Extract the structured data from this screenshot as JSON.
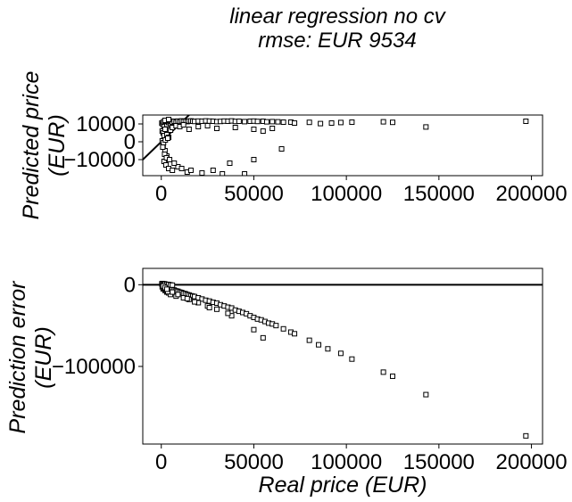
{
  "figure": {
    "title_line1": "linear regression no cv",
    "title_line2": "rmse: EUR 9534"
  },
  "chart_data": [
    {
      "type": "scatter",
      "title": "",
      "xlabel": "",
      "ylabel_line1": "Predicted price",
      "ylabel_line2": "(EUR)",
      "xlim": [
        -10000,
        206000
      ],
      "ylim": [
        -19000,
        15000
      ],
      "xticks": [
        0,
        50000,
        100000,
        150000,
        200000
      ],
      "xtick_labels": [
        "0",
        "50000",
        "100000",
        "150000",
        "200000"
      ],
      "yticks": [
        10000,
        0,
        -10000
      ],
      "ytick_labels": [
        "10000",
        "0",
        "−10000"
      ],
      "reference_line": {
        "label": "",
        "slope": 1,
        "intercept": 0
      },
      "marker": "square",
      "x": [
        300,
        800,
        1200,
        1500,
        2000,
        2500,
        3000,
        3500,
        4000,
        4500,
        5000,
        5500,
        6000,
        7000,
        8000,
        9000,
        10000,
        11000,
        12000,
        13000,
        14000,
        15000,
        16000,
        17000,
        18000,
        20000,
        22000,
        24000,
        26000,
        28000,
        30000,
        32000,
        34000,
        36000,
        38000,
        40000,
        42000,
        45000,
        48000,
        50000,
        52000,
        55000,
        57000,
        60000,
        63000,
        66000,
        70000,
        72000,
        80000,
        86000,
        92000,
        97000,
        103000,
        120000,
        125000,
        143000,
        197000,
        500,
        1000,
        1500,
        2000,
        3000,
        4000,
        5000,
        6000,
        8000,
        10000,
        12000,
        15000,
        20000,
        25000,
        30000,
        40000,
        50000,
        55000,
        60000,
        1000,
        2000,
        3000,
        1500,
        2500,
        4000,
        6000,
        9000,
        14000,
        28000,
        37000,
        500,
        1200,
        2200,
        3500,
        800,
        1800,
        2800,
        4500,
        7000,
        11000,
        16000,
        22000,
        33000,
        45000,
        65000,
        50000,
        2000,
        4000
      ],
      "y": [
        10500,
        9800,
        11200,
        8600,
        10900,
        11500,
        9700,
        11300,
        10800,
        11600,
        10200,
        11400,
        11000,
        11500,
        10900,
        11600,
        11200,
        11700,
        11400,
        11500,
        11300,
        11600,
        11700,
        11500,
        11400,
        11600,
        11500,
        11700,
        11600,
        11500,
        11300,
        11400,
        11600,
        11500,
        11700,
        11400,
        11500,
        11300,
        11500,
        11600,
        11400,
        11500,
        11200,
        11300,
        11200,
        11000,
        11000,
        10500,
        10900,
        10200,
        10500,
        10800,
        11000,
        11200,
        10900,
        8300,
        11500,
        6000,
        5000,
        3500,
        7000,
        4000,
        2500,
        6500,
        8000,
        9000,
        8500,
        9500,
        7000,
        8500,
        9000,
        7500,
        8000,
        7000,
        6000,
        7500,
        -2000,
        -5000,
        -8000,
        -11000,
        -13000,
        -15000,
        -16000,
        -14000,
        -17000,
        -16000,
        -12000,
        500,
        -500,
        1000,
        2000,
        -3000,
        -7000,
        -9000,
        -10000,
        -12000,
        -15000,
        -16000,
        -17500,
        -18000,
        -18000,
        -4000,
        -10000,
        12000,
        12500
      ]
    },
    {
      "type": "scatter",
      "title": "",
      "xlabel": "Real price (EUR)",
      "ylabel_line1": "Prediction error",
      "ylabel_line2": "(EUR)",
      "xlim": [
        -10000,
        206000
      ],
      "ylim": [
        -195000,
        20000
      ],
      "xticks": [
        0,
        50000,
        100000,
        150000,
        200000
      ],
      "xtick_labels": [
        "0",
        "50000",
        "100000",
        "150000",
        "200000"
      ],
      "yticks": [
        0,
        -100000
      ],
      "ytick_labels": [
        "0",
        "−100000"
      ],
      "reference_line": {
        "label": "",
        "slope": 0,
        "intercept": 0
      },
      "marker": "square",
      "x": [
        300,
        800,
        1200,
        1500,
        2000,
        2500,
        3000,
        3500,
        4000,
        4500,
        5000,
        6000,
        7000,
        8000,
        9000,
        10000,
        11000,
        12000,
        13000,
        14000,
        15000,
        16000,
        17000,
        18000,
        20000,
        22000,
        24000,
        26000,
        28000,
        30000,
        32000,
        34000,
        36000,
        38000,
        40000,
        42000,
        44000,
        46000,
        48000,
        50000,
        52000,
        54000,
        56000,
        58000,
        60000,
        62000,
        66000,
        70000,
        72000,
        80000,
        85000,
        90000,
        97000,
        103000,
        120000,
        125000,
        143000,
        197000,
        500,
        1000,
        1500,
        2000,
        3000,
        4000,
        5000,
        6000,
        1000,
        2000,
        3000,
        4000,
        5000,
        8000,
        12000,
        15000,
        20000,
        25000,
        30000,
        38000,
        50000,
        55000,
        500,
        1500,
        2500,
        3500,
        1000,
        2000,
        3000,
        6000,
        9000,
        14000,
        18000,
        26000,
        36000
      ],
      "y": [
        900,
        500,
        -300,
        200,
        -800,
        -1500,
        -2500,
        -3000,
        -3800,
        -4000,
        -5000,
        -6000,
        -6500,
        -7500,
        -8000,
        -9000,
        -9500,
        -10500,
        -11000,
        -12000,
        -12500,
        -13500,
        -14000,
        -14500,
        -16000,
        -17500,
        -19000,
        -20000,
        -21500,
        -22500,
        -24500,
        -26000,
        -27500,
        -28500,
        -31000,
        -32500,
        -34000,
        -35500,
        -38000,
        -40000,
        -42000,
        -43000,
        -45000,
        -47000,
        -48000,
        -50000,
        -54000,
        -58000,
        -60000,
        -68000,
        -73500,
        -78500,
        -84000,
        -91000,
        -107000,
        -112000,
        -134500,
        -185000,
        1500,
        1000,
        1200,
        800,
        500,
        300,
        -200,
        -500,
        -5000,
        -7000,
        -9000,
        -10000,
        -12000,
        -14000,
        -16000,
        -18000,
        -22000,
        -26000,
        -30000,
        -38000,
        -55000,
        -65000,
        -2500,
        -4500,
        -6500,
        -8500,
        -1500,
        -3500,
        -5500,
        -9000,
        -12000,
        -17000,
        -21000,
        -28000,
        -35000
      ]
    }
  ]
}
